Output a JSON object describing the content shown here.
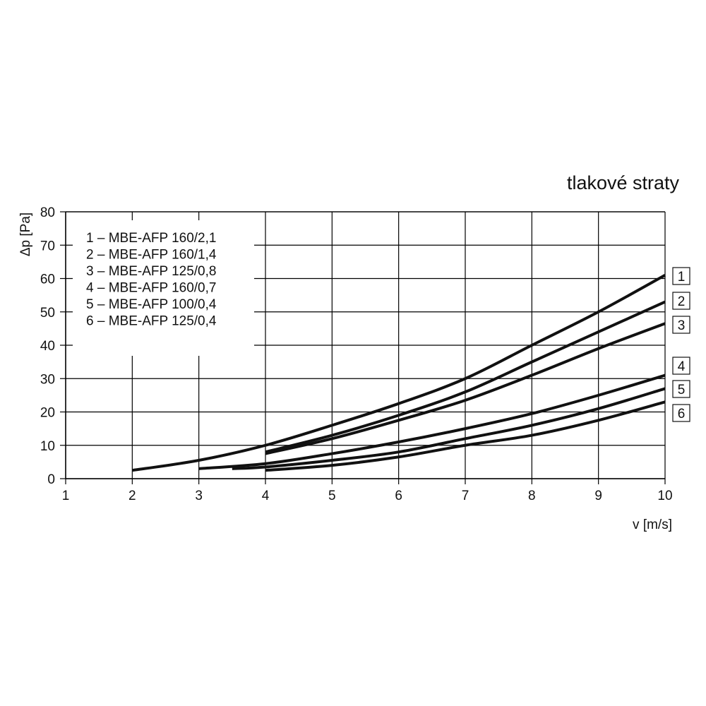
{
  "chart_data": {
    "type": "line",
    "title": "tlakové straty",
    "xlabel": "v [m/s]",
    "ylabel": "Δp [Pa]",
    "xlim": [
      1,
      10
    ],
    "ylim": [
      0,
      80
    ],
    "x_ticks": [
      "1",
      "2",
      "3",
      "4",
      "5",
      "6",
      "7",
      "8",
      "9",
      "10"
    ],
    "y_ticks": [
      "0",
      "10",
      "20",
      "30",
      "40",
      "50",
      "60",
      "70",
      "80"
    ],
    "grid": true,
    "legend_position": "top-left",
    "legend": [
      "1 – MBE-AFP 160/2,1",
      "2 – MBE-AFP 160/1,4",
      "3 – MBE-AFP 125/0,8",
      "4 – MBE-AFP 160/0,7",
      "5 – MBE-AFP 100/0,4",
      "6 – MBE-AFP 125/0,4"
    ],
    "series": [
      {
        "name": "1",
        "x": [
          2,
          3,
          4,
          5,
          6,
          7,
          8,
          9,
          10
        ],
        "y": [
          2.5,
          5.5,
          10,
          16,
          22.5,
          30,
          40,
          50,
          61
        ]
      },
      {
        "name": "2",
        "x": [
          4,
          5,
          6,
          7,
          8,
          9,
          10
        ],
        "y": [
          8,
          13,
          19,
          26,
          35,
          44,
          53
        ]
      },
      {
        "name": "3",
        "x": [
          4,
          5,
          6,
          7,
          8,
          9,
          10
        ],
        "y": [
          7.5,
          12,
          17.5,
          23.5,
          31,
          39,
          46.5
        ]
      },
      {
        "name": "4",
        "x": [
          3,
          4,
          5,
          6,
          7,
          8,
          9,
          10
        ],
        "y": [
          3,
          4.5,
          7.5,
          11,
          15,
          19.5,
          25,
          31
        ]
      },
      {
        "name": "5",
        "x": [
          3.5,
          4,
          5,
          6,
          7,
          8,
          9,
          10
        ],
        "y": [
          3,
          3.5,
          5.5,
          8,
          12,
          16,
          21,
          27
        ]
      },
      {
        "name": "6",
        "x": [
          4,
          5,
          6,
          7,
          8,
          9,
          10
        ],
        "y": [
          2.5,
          4,
          6.5,
          10,
          13,
          17.5,
          23
        ]
      }
    ]
  }
}
